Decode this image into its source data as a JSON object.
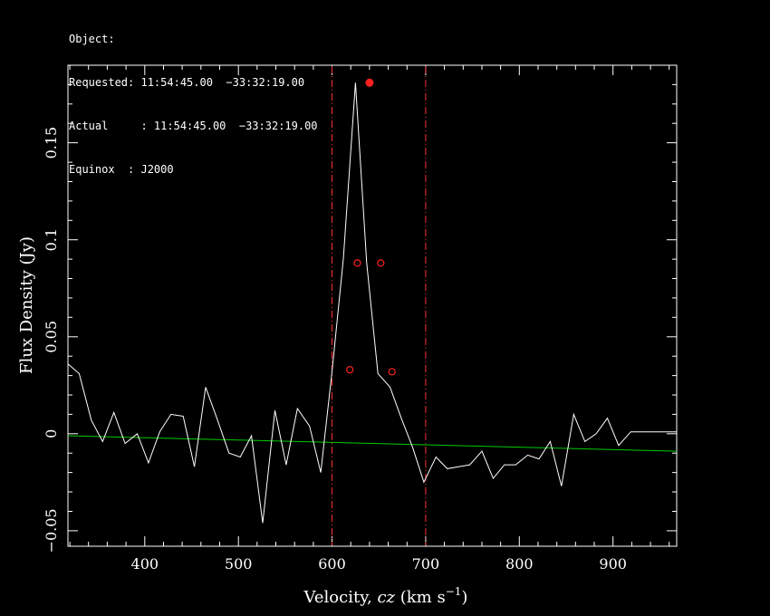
{
  "header": {
    "object_line": "Object:",
    "requested_line": "Requested: 11:54:45.00  −33:32:19.00",
    "actual_line": "Actual     : 11:54:45.00  −33:32:19.00",
    "equinox_line": "Equinox  : J2000"
  },
  "chart_data": {
    "type": "line",
    "xlabel_main": "Velocity, ",
    "xlabel_italic": "cz",
    "xlabel_units": " (km s",
    "xlabel_sup": "−1",
    "xlabel_close": ")",
    "ylabel": "Flux Density (Jy)",
    "xlim": [
      318,
      968
    ],
    "ylim": [
      -0.058,
      0.19
    ],
    "x_ticks": [
      400,
      500,
      600,
      700,
      800,
      900
    ],
    "x_tick_labels": [
      "400",
      "500",
      "600",
      "700",
      "800",
      "900"
    ],
    "y_ticks": [
      -0.05,
      0,
      0.05,
      0.1,
      0.15
    ],
    "y_tick_labels": [
      "−0.05",
      "0",
      "0.05",
      "0.1",
      "0.15"
    ],
    "grid": false,
    "series": [
      {
        "color": "#ffffff",
        "x": [
          318,
          330,
          343,
          355,
          367,
          379,
          392,
          404,
          416,
          428,
          441,
          453,
          465,
          477,
          490,
          502,
          514,
          526,
          539,
          551,
          563,
          576,
          588,
          600,
          612,
          625,
          637,
          649,
          662,
          674,
          686,
          698,
          711,
          723,
          735,
          747,
          760,
          772,
          784,
          796,
          809,
          821,
          833,
          845,
          858,
          870,
          882,
          894,
          906,
          919,
          931,
          943,
          955,
          968
        ],
        "y": [
          0.036,
          0.031,
          0.007,
          -0.004,
          0.011,
          -0.005,
          0.0,
          -0.015,
          0.001,
          0.01,
          0.009,
          -0.017,
          0.024,
          0.008,
          -0.01,
          -0.012,
          -0.001,
          -0.046,
          0.012,
          -0.016,
          0.013,
          0.004,
          -0.02,
          0.032,
          0.09,
          0.181,
          0.088,
          0.031,
          0.024,
          0.008,
          -0.007,
          -0.025,
          -0.012,
          -0.018,
          -0.017,
          -0.016,
          -0.009,
          -0.023,
          -0.016,
          -0.016,
          -0.011,
          -0.013,
          -0.004,
          -0.027,
          0.01,
          -0.004,
          0.0,
          0.008,
          -0.006,
          0.001,
          0.001,
          0.001,
          0.001,
          0.001
        ]
      },
      {
        "color": "#00cc00",
        "x": [
          318,
          968
        ],
        "y": [
          -0.001,
          -0.009
        ]
      }
    ],
    "vertical_lines": [
      600,
      700
    ],
    "vertical_line_color": "#ff3030",
    "markers_open": [
      {
        "x": 619,
        "y": 0.033
      },
      {
        "x": 627,
        "y": 0.088
      },
      {
        "x": 652,
        "y": 0.088
      },
      {
        "x": 664,
        "y": 0.032
      }
    ],
    "marker_peak": {
      "x": 640,
      "y": 0.181
    },
    "marker_color": "#ff2020"
  }
}
